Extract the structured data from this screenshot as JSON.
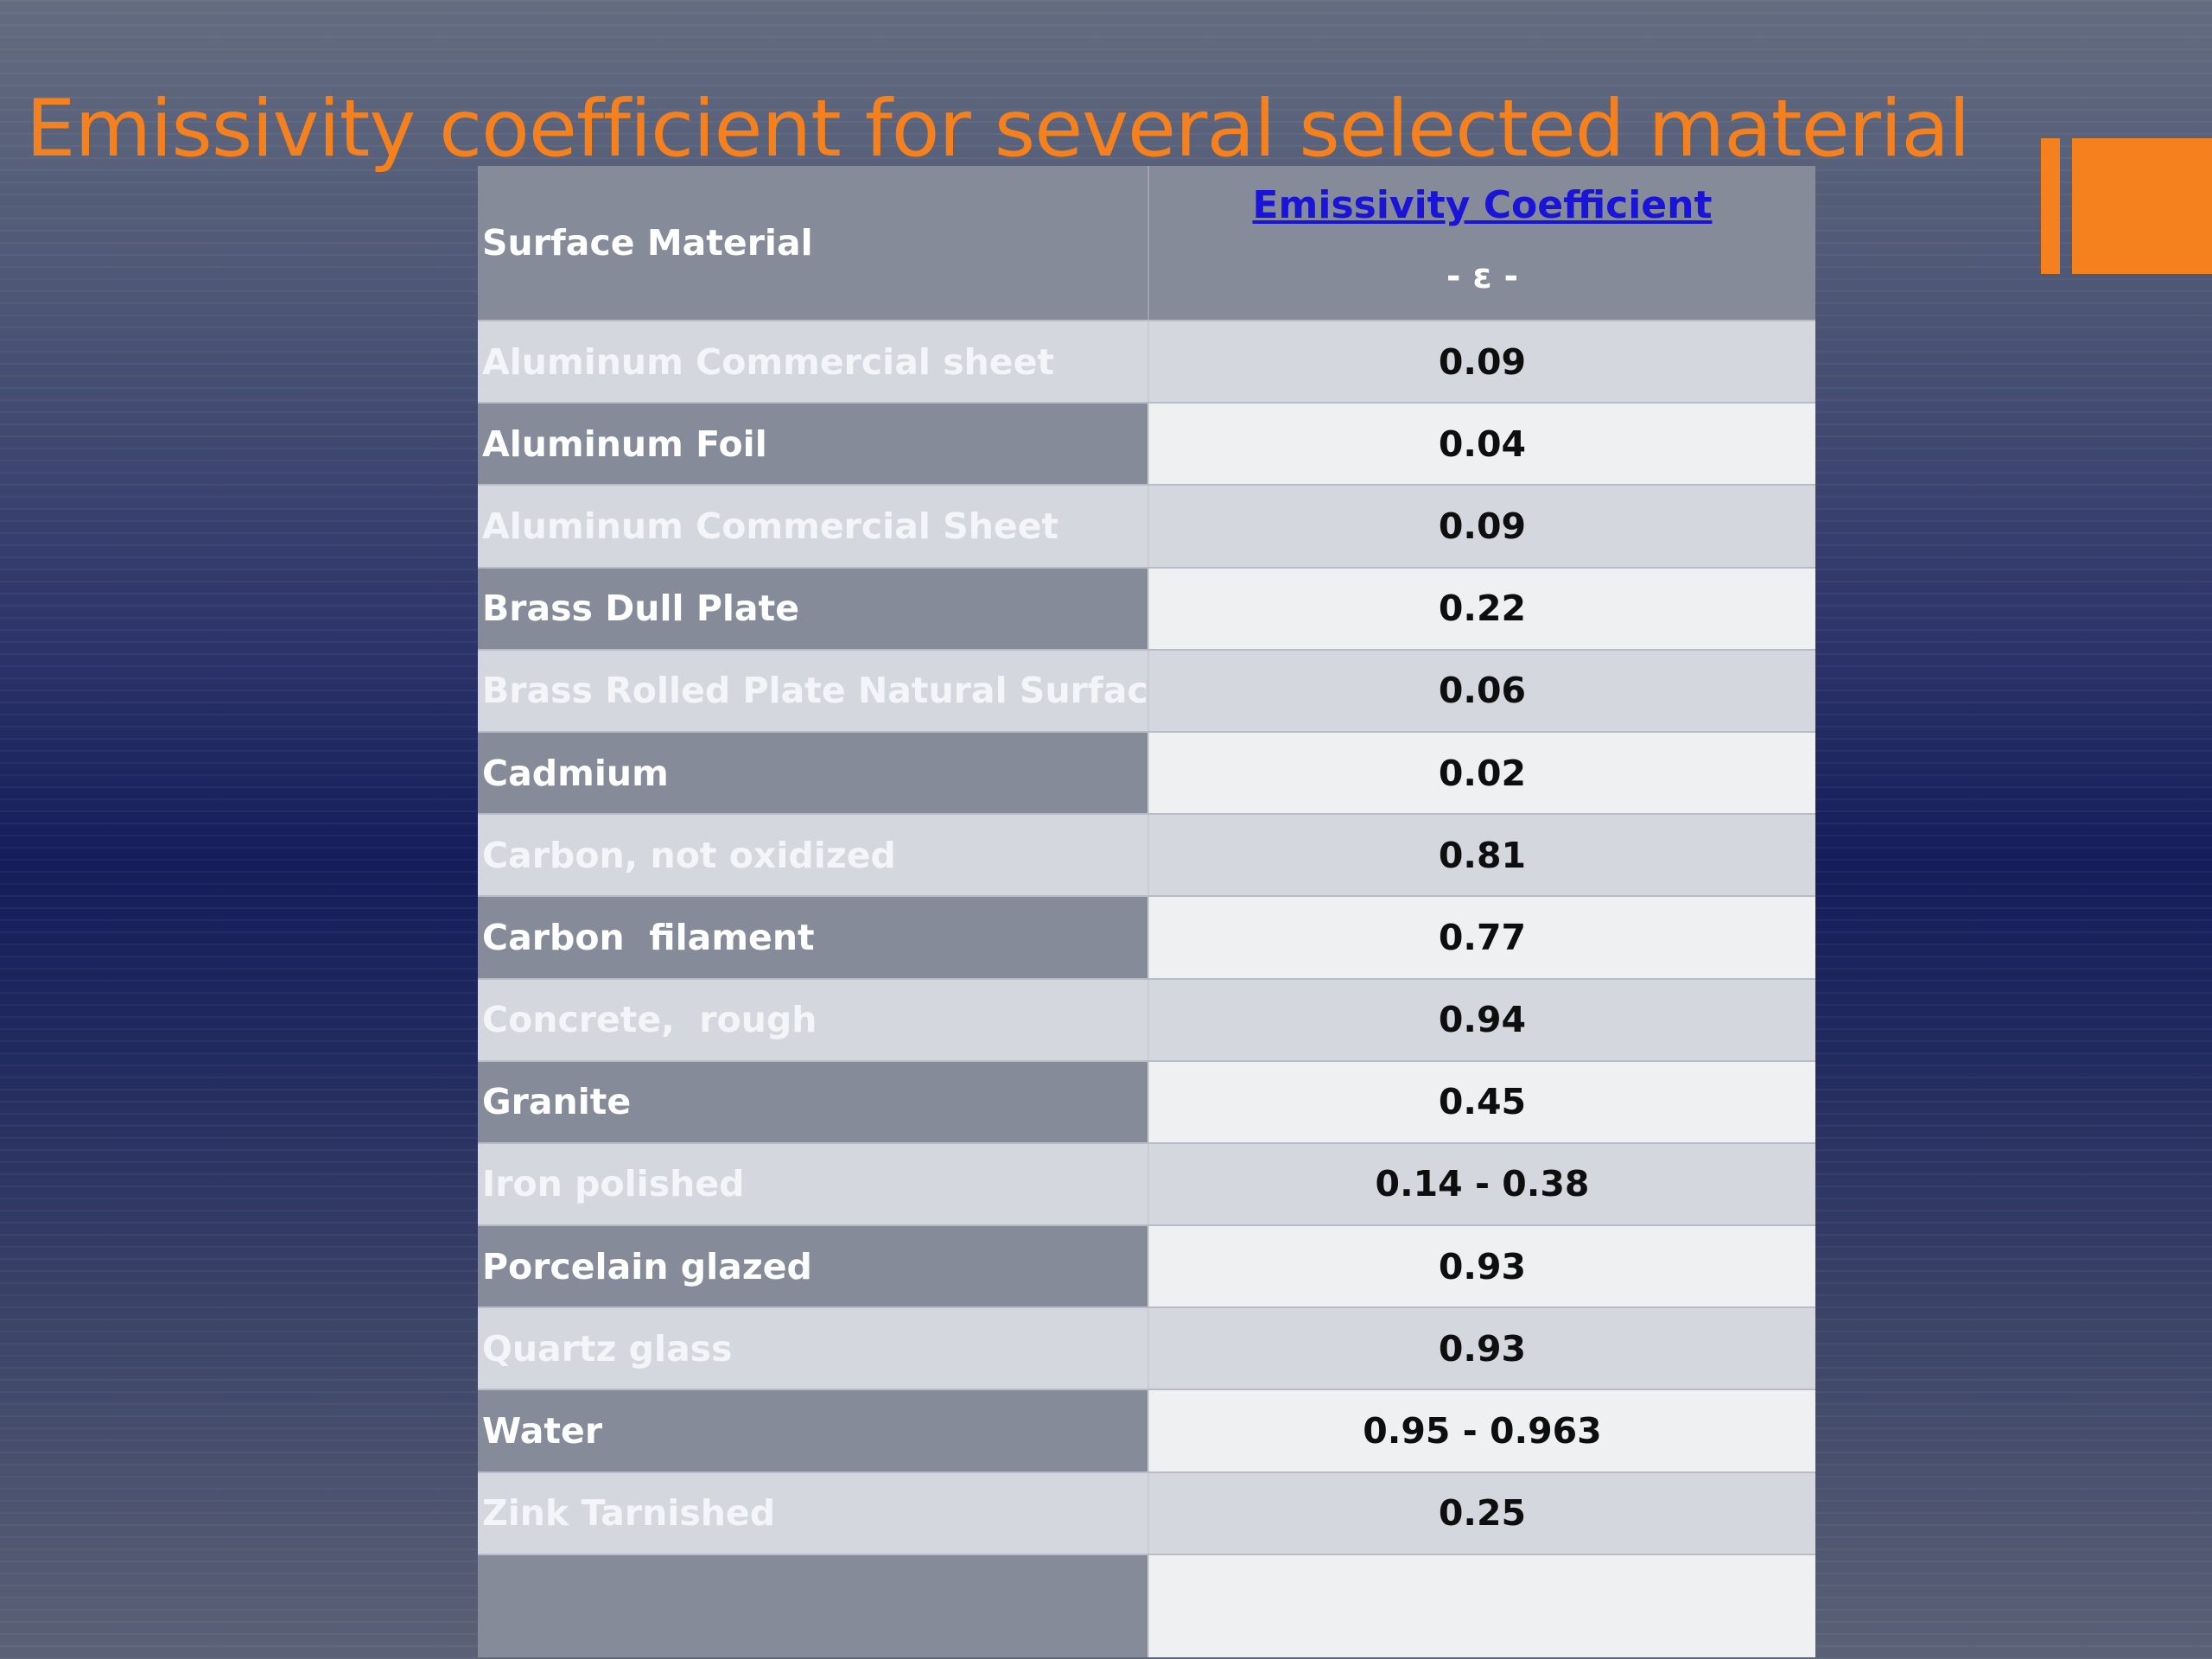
{
  "slide": {
    "title": "Emissivity coefficient for several selected material"
  },
  "table": {
    "header": {
      "material_label": "Surface Material",
      "coefficient_label": "Emissivity Coefficient",
      "symbol_label": "- ε -"
    },
    "rows": [
      {
        "material": "Aluminum Commercial sheet",
        "value": "0.09"
      },
      {
        "material": "Aluminum Foil",
        "value": "0.04"
      },
      {
        "material": "Aluminum Commercial Sheet",
        "value": "0.09"
      },
      {
        "material": "Brass Dull Plate",
        "value": "0.22"
      },
      {
        "material": "Brass Rolled Plate Natural Surface",
        "value": "0.06"
      },
      {
        "material": "Cadmium",
        "value": "0.02"
      },
      {
        "material": "Carbon, not oxidized",
        "value": "0.81"
      },
      {
        "material": "Carbon  filament",
        "value": "0.77"
      },
      {
        "material": "Concrete,  rough",
        "value": "0.94"
      },
      {
        "material": "Granite",
        "value": "0.45"
      },
      {
        "material": "Iron polished",
        "value": "0.14 - 0.38"
      },
      {
        "material": "Porcelain glazed",
        "value": "0.93"
      },
      {
        "material": "Quartz glass",
        "value": "0.93"
      },
      {
        "material": "Water",
        "value": "0.95 - 0.963"
      },
      {
        "material": "Zink Tarnished",
        "value": "0.25"
      }
    ]
  },
  "colors": {
    "accent": "#f5801e",
    "link": "#1a14d8"
  }
}
